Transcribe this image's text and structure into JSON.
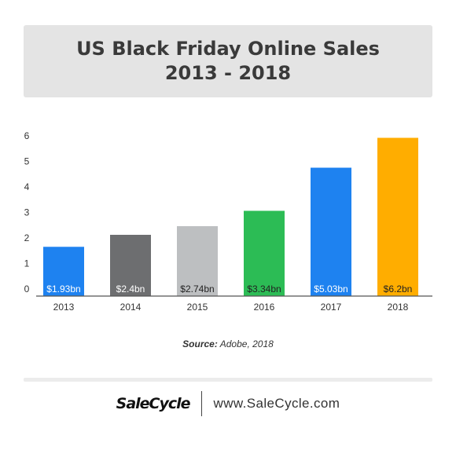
{
  "title": {
    "line1": "US Black Friday Online Sales",
    "line2": "2013 - 2018"
  },
  "chart_data": {
    "type": "bar",
    "title": "US Black Friday Online Sales 2013 - 2018",
    "categories": [
      "2013",
      "2014",
      "2015",
      "2016",
      "2017",
      "2018"
    ],
    "values": [
      1.93,
      2.4,
      2.74,
      3.34,
      5.03,
      6.2
    ],
    "data_labels": [
      "$1.93bn",
      "$2.4bn",
      "$2.74bn",
      "$3.34bn",
      "$5.03bn",
      "$6.2bn"
    ],
    "bar_colors": [
      "#1e82f0",
      "#6d6e70",
      "#bdbfc1",
      "#2cbc55",
      "#1e82f0",
      "#ffad00"
    ],
    "label_colors": [
      "#ffffff",
      "#ffffff",
      "#222222",
      "#222222",
      "#ffffff",
      "#222222"
    ],
    "y_ticks": [
      0,
      1,
      2,
      3,
      4,
      5,
      6
    ],
    "ylim": [
      0,
      6
    ],
    "xlabel": "",
    "ylabel": "",
    "grid": false,
    "legend": "none"
  },
  "source": {
    "label": "Source:",
    "text": " Adobe, 2018"
  },
  "footer": {
    "logo_text": "SaleCycle",
    "url": "www.SaleCycle.com"
  }
}
